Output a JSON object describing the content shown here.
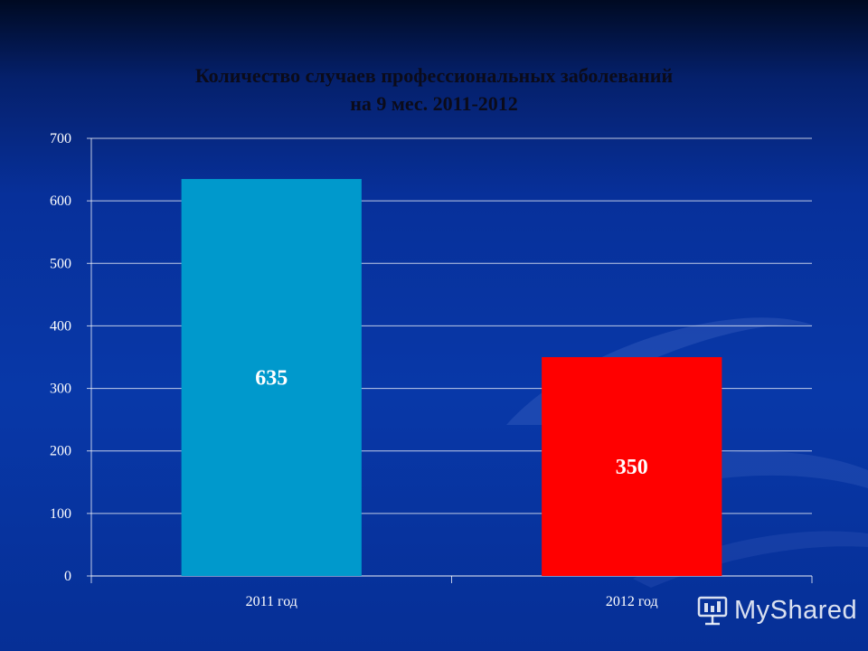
{
  "chart_data": {
    "type": "bar",
    "title_line1": "Количество случаев профессиональных заболеваний",
    "title_line2": "на 9 мес. 2011-2012",
    "categories": [
      "2011 год",
      "2012 год"
    ],
    "values": [
      635,
      350
    ],
    "value_labels": [
      "635",
      "350"
    ],
    "bar_colors": [
      "#0099cc",
      "#ff0000"
    ],
    "ylim": [
      0,
      700
    ],
    "yticks": [
      0,
      100,
      200,
      300,
      400,
      500,
      600,
      700
    ],
    "grid": true,
    "xlabel": "",
    "ylabel": ""
  },
  "watermark": {
    "text": "MyShared",
    "icon": "presentation-board-icon"
  }
}
